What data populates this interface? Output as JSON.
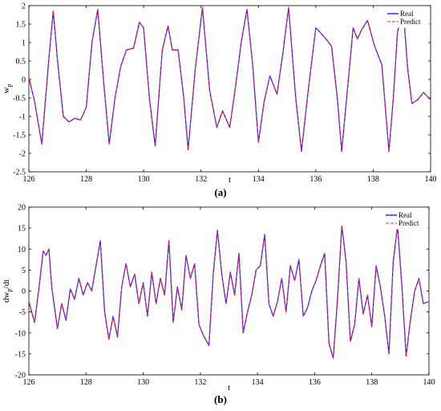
{
  "colors": {
    "real": "#1f1fff",
    "predict": "#ff2a2a",
    "axis": "#000000"
  },
  "chart_data": [
    {
      "type": "line",
      "caption": "(a)",
      "xlabel": "t",
      "ylabel": "w_p",
      "ylabel_main": "w",
      "ylabel_sub": "p",
      "xlim": [
        126,
        140
      ],
      "ylim": [
        -2.5,
        2
      ],
      "xticks": [
        "126",
        "128",
        "130",
        "132",
        "134",
        "136",
        "138",
        "140"
      ],
      "yticks": [
        "-2.5",
        "-2",
        "-1.5",
        "-1",
        "-0.5",
        "0",
        "0.5",
        "1",
        "1.5",
        "2"
      ],
      "legend": [
        "Real",
        "Predict"
      ],
      "legend_position": "top-right",
      "series": [
        {
          "name": "Real",
          "x": [
            126,
            126.2,
            126.45,
            126.7,
            126.85,
            127.0,
            127.2,
            127.4,
            127.6,
            127.8,
            128.0,
            128.2,
            128.4,
            128.6,
            128.8,
            129.0,
            129.2,
            129.4,
            129.65,
            129.85,
            130.0,
            130.2,
            130.4,
            130.65,
            130.85,
            131.0,
            131.2,
            131.4,
            131.55,
            131.8,
            132.05,
            132.3,
            132.55,
            132.75,
            133.0,
            133.2,
            133.4,
            133.6,
            133.8,
            134.0,
            134.2,
            134.4,
            134.65,
            134.85,
            135.05,
            135.3,
            135.5,
            135.75,
            136.0,
            136.3,
            136.55,
            136.75,
            136.9,
            137.1,
            137.3,
            137.45,
            137.6,
            137.8,
            138.05,
            138.3,
            138.55,
            138.7,
            138.85,
            139.05,
            139.2,
            139.35,
            139.55,
            139.75,
            140.0
          ],
          "y": [
            0.05,
            -0.6,
            -1.75,
            0.6,
            1.85,
            0.5,
            -1.0,
            -1.15,
            -1.05,
            -1.1,
            -0.75,
            1.0,
            1.9,
            0.0,
            -1.75,
            -0.5,
            0.35,
            0.8,
            0.85,
            1.55,
            1.4,
            -0.5,
            -1.8,
            0.8,
            1.45,
            0.8,
            0.8,
            -0.5,
            -1.9,
            0.3,
            1.95,
            -0.3,
            -1.3,
            -0.85,
            -1.3,
            -0.2,
            1.0,
            1.9,
            0.4,
            -1.7,
            -0.6,
            0.1,
            -0.4,
            0.7,
            1.95,
            -0.5,
            -1.95,
            -0.2,
            1.4,
            1.15,
            0.9,
            -0.5,
            -1.95,
            -0.3,
            1.4,
            1.1,
            1.35,
            1.6,
            0.9,
            0.4,
            -1.95,
            -0.5,
            1.3,
            1.85,
            0.3,
            -0.65,
            -0.55,
            -0.35,
            -0.55
          ]
        },
        {
          "name": "Predict",
          "x": [
            126,
            126.2,
            126.45,
            126.7,
            126.85,
            127.0,
            127.2,
            127.4,
            127.6,
            127.8,
            128.0,
            128.2,
            128.4,
            128.6,
            128.8,
            129.0,
            129.2,
            129.4,
            129.65,
            129.85,
            130.0,
            130.2,
            130.4,
            130.65,
            130.85,
            131.0,
            131.2,
            131.4,
            131.55,
            131.8,
            132.05,
            132.3,
            132.55,
            132.75,
            133.0,
            133.2,
            133.4,
            133.6,
            133.8,
            134.0,
            134.2,
            134.4,
            134.65,
            134.85,
            135.05,
            135.3,
            135.5,
            135.75,
            136.0,
            136.3,
            136.55,
            136.75,
            136.9,
            137.1,
            137.3,
            137.45,
            137.6,
            137.8,
            138.05,
            138.3,
            138.55,
            138.7,
            138.85,
            139.05,
            139.2,
            139.35,
            139.55,
            139.75,
            140.0
          ],
          "y": [
            0.05,
            -0.6,
            -1.75,
            0.6,
            1.85,
            0.5,
            -1.0,
            -1.15,
            -1.05,
            -1.1,
            -0.75,
            1.0,
            1.9,
            0.0,
            -1.75,
            -0.5,
            0.35,
            0.8,
            0.85,
            1.55,
            1.4,
            -0.5,
            -1.8,
            0.8,
            1.45,
            0.8,
            0.8,
            -0.5,
            -1.9,
            0.3,
            1.95,
            -0.3,
            -1.3,
            -0.85,
            -1.3,
            -0.2,
            1.0,
            1.9,
            0.4,
            -1.7,
            -0.6,
            0.1,
            -0.4,
            0.7,
            1.95,
            -0.5,
            -1.95,
            -0.2,
            1.4,
            1.15,
            0.9,
            -0.5,
            -1.95,
            -0.3,
            1.4,
            1.1,
            1.35,
            1.6,
            0.9,
            0.4,
            -1.95,
            -0.5,
            1.3,
            1.85,
            0.3,
            -0.65,
            -0.55,
            -0.35,
            -0.55
          ]
        }
      ]
    },
    {
      "type": "line",
      "caption": "(b)",
      "xlabel": "t",
      "ylabel": "dw_p/dt",
      "ylabel_main": "dw",
      "ylabel_sub": "p",
      "ylabel_tail": "/dt",
      "xlim": [
        126,
        140
      ],
      "ylim": [
        -20,
        20
      ],
      "xticks": [
        "126",
        "128",
        "130",
        "132",
        "134",
        "136",
        "138",
        "140"
      ],
      "yticks": [
        "-20",
        "-15",
        "-10",
        "-5",
        "0",
        "5",
        "10",
        "15",
        "20"
      ],
      "legend": [
        "Real",
        "Predict"
      ],
      "legend_position": "top-right",
      "series": [
        {
          "name": "Real",
          "x": [
            126,
            126.2,
            126.35,
            126.5,
            126.6,
            126.7,
            126.8,
            127.0,
            127.15,
            127.3,
            127.45,
            127.6,
            127.75,
            127.9,
            128.05,
            128.2,
            128.35,
            128.5,
            128.65,
            128.8,
            128.95,
            129.1,
            129.25,
            129.4,
            129.55,
            129.7,
            129.85,
            130.0,
            130.15,
            130.3,
            130.45,
            130.6,
            130.75,
            130.9,
            131.05,
            131.2,
            131.35,
            131.5,
            131.65,
            131.8,
            131.95,
            132.1,
            132.3,
            132.45,
            132.6,
            132.75,
            132.9,
            133.05,
            133.2,
            133.35,
            133.5,
            133.65,
            133.8,
            133.95,
            134.1,
            134.25,
            134.4,
            134.55,
            134.7,
            134.85,
            135.0,
            135.15,
            135.3,
            135.45,
            135.6,
            135.75,
            135.9,
            136.05,
            136.2,
            136.35,
            136.5,
            136.65,
            136.8,
            136.95,
            137.1,
            137.25,
            137.4,
            137.55,
            137.7,
            137.85,
            138.0,
            138.15,
            138.3,
            138.45,
            138.6,
            138.75,
            138.9,
            139.05,
            139.2,
            139.35,
            139.5,
            139.65,
            139.8,
            140.0
          ],
          "y": [
            -2.5,
            -7.5,
            0.5,
            9.5,
            8.5,
            10.0,
            1.0,
            -9.0,
            -3.0,
            -7.0,
            0.5,
            -2.0,
            3.0,
            -1.0,
            2.0,
            0.0,
            6.0,
            12.0,
            -5.0,
            -11.5,
            -6.0,
            -11.0,
            1.0,
            6.5,
            1.0,
            4.0,
            -3.0,
            2.0,
            -6.0,
            4.5,
            -3.0,
            3.0,
            -1.0,
            12.0,
            -7.5,
            1.0,
            -4.5,
            8.5,
            3.0,
            6.5,
            -8.0,
            -10.5,
            -13.0,
            4.0,
            14.5,
            4.0,
            -3.0,
            4.5,
            -1.0,
            9.0,
            -10.0,
            -5.0,
            -1.0,
            5.0,
            6.0,
            13.5,
            -3.0,
            -6.0,
            -2.5,
            3.0,
            -5.0,
            6.0,
            2.5,
            7.5,
            -6.0,
            -4.0,
            0.0,
            2.5,
            6.0,
            9.0,
            -12.5,
            -16.0,
            -2.0,
            15.5,
            7.0,
            -12.0,
            -8.0,
            3.0,
            -5.5,
            -1.0,
            -8.5,
            6.0,
            1.0,
            -6.0,
            -15.0,
            7.0,
            15.5,
            1.5,
            -15.5,
            -7.0,
            0.0,
            3.0,
            -3.0,
            -2.5
          ]
        },
        {
          "name": "Predict",
          "x": [
            126,
            126.2,
            126.35,
            126.5,
            126.6,
            126.7,
            126.8,
            127.0,
            127.15,
            127.3,
            127.45,
            127.6,
            127.75,
            127.9,
            128.05,
            128.2,
            128.35,
            128.5,
            128.65,
            128.8,
            128.95,
            129.1,
            129.25,
            129.4,
            129.55,
            129.7,
            129.85,
            130.0,
            130.15,
            130.3,
            130.45,
            130.6,
            130.75,
            130.9,
            131.05,
            131.2,
            131.35,
            131.5,
            131.65,
            131.8,
            131.95,
            132.1,
            132.3,
            132.45,
            132.6,
            132.75,
            132.9,
            133.05,
            133.2,
            133.35,
            133.5,
            133.65,
            133.8,
            133.95,
            134.1,
            134.25,
            134.4,
            134.55,
            134.7,
            134.85,
            135.0,
            135.15,
            135.3,
            135.45,
            135.6,
            135.75,
            135.9,
            136.05,
            136.2,
            136.35,
            136.5,
            136.65,
            136.8,
            136.95,
            137.1,
            137.25,
            137.4,
            137.55,
            137.7,
            137.85,
            138.0,
            138.15,
            138.3,
            138.45,
            138.6,
            138.75,
            138.9,
            139.05,
            139.2,
            139.35,
            139.5,
            139.65,
            139.8,
            140.0
          ],
          "y": [
            -2.5,
            -7.5,
            0.5,
            9.5,
            8.5,
            10.0,
            1.0,
            -9.0,
            -3.0,
            -7.0,
            0.5,
            -2.0,
            3.0,
            -1.0,
            2.0,
            0.0,
            6.0,
            12.0,
            -5.0,
            -11.5,
            -6.0,
            -11.0,
            1.0,
            6.5,
            1.0,
            4.0,
            -3.0,
            2.0,
            -6.0,
            4.5,
            -3.0,
            3.0,
            -1.0,
            12.0,
            -7.5,
            1.0,
            -4.5,
            8.5,
            3.0,
            6.5,
            -8.0,
            -10.5,
            -13.0,
            4.0,
            14.5,
            4.0,
            -3.0,
            4.5,
            -1.0,
            9.0,
            -10.0,
            -5.0,
            -1.0,
            5.0,
            6.0,
            13.5,
            -3.0,
            -6.0,
            -2.5,
            3.0,
            -5.0,
            6.0,
            2.5,
            7.5,
            -6.0,
            -4.0,
            0.0,
            2.5,
            6.0,
            9.0,
            -12.5,
            -16.0,
            -2.0,
            15.5,
            7.0,
            -12.0,
            -8.0,
            3.0,
            -5.5,
            -1.0,
            -8.5,
            6.0,
            1.0,
            -6.0,
            -15.0,
            7.0,
            15.5,
            1.5,
            -15.5,
            -7.0,
            0.0,
            3.0,
            -3.0,
            -2.5
          ]
        }
      ]
    }
  ]
}
